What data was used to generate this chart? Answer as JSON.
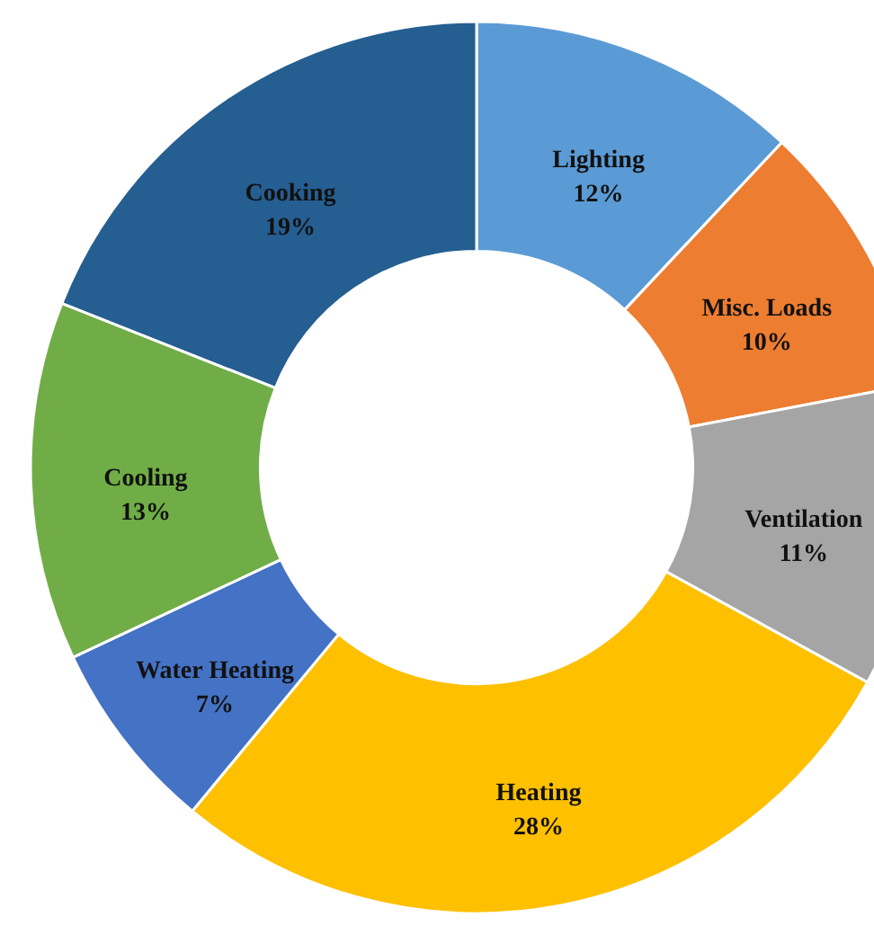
{
  "chart_data": {
    "type": "donut",
    "categories": [
      "Lighting",
      "Misc. Loads",
      "Ventilation",
      "Heating",
      "Water Heating",
      "Cooling",
      "Cooking"
    ],
    "values": [
      12,
      10,
      11,
      28,
      7,
      13,
      19
    ],
    "colors": [
      "#5b9bd5",
      "#ed7d31",
      "#a5a5a5",
      "#ffc000",
      "#4472c4",
      "#70ad47",
      "#255e91"
    ],
    "value_labels": [
      "12%",
      "10%",
      "11%",
      "28%",
      "7%",
      "13%",
      "19%"
    ]
  }
}
